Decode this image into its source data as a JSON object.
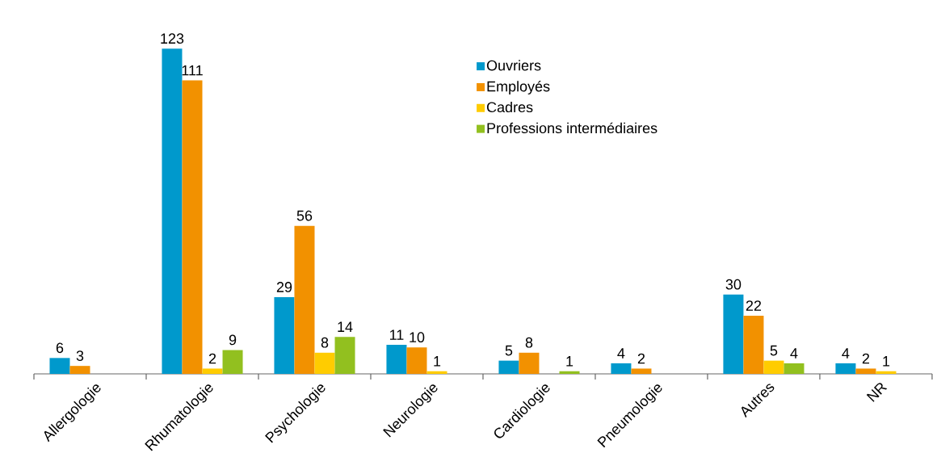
{
  "chart_data": {
    "type": "bar",
    "categories": [
      "Allergologie",
      "Rhumatologie",
      "Psychologie",
      "Neurologie",
      "Cardiologie",
      "Pneumologie",
      "Autres",
      "NR"
    ],
    "series": [
      {
        "name": "Ouvriers",
        "color": "#0099cc",
        "values": [
          6,
          123,
          29,
          11,
          5,
          4,
          30,
          4
        ]
      },
      {
        "name": "Employés",
        "color": "#f29100",
        "values": [
          3,
          111,
          56,
          10,
          8,
          2,
          22,
          2
        ]
      },
      {
        "name": "Cadres",
        "color": "#ffcc00",
        "values": [
          null,
          2,
          8,
          1,
          null,
          null,
          5,
          1
        ]
      },
      {
        "name": "Professions intermédiaires",
        "color": "#92c01f",
        "values": [
          null,
          9,
          14,
          null,
          1,
          null,
          4,
          null
        ]
      }
    ],
    "data_labels": true,
    "legend": "top"
  }
}
